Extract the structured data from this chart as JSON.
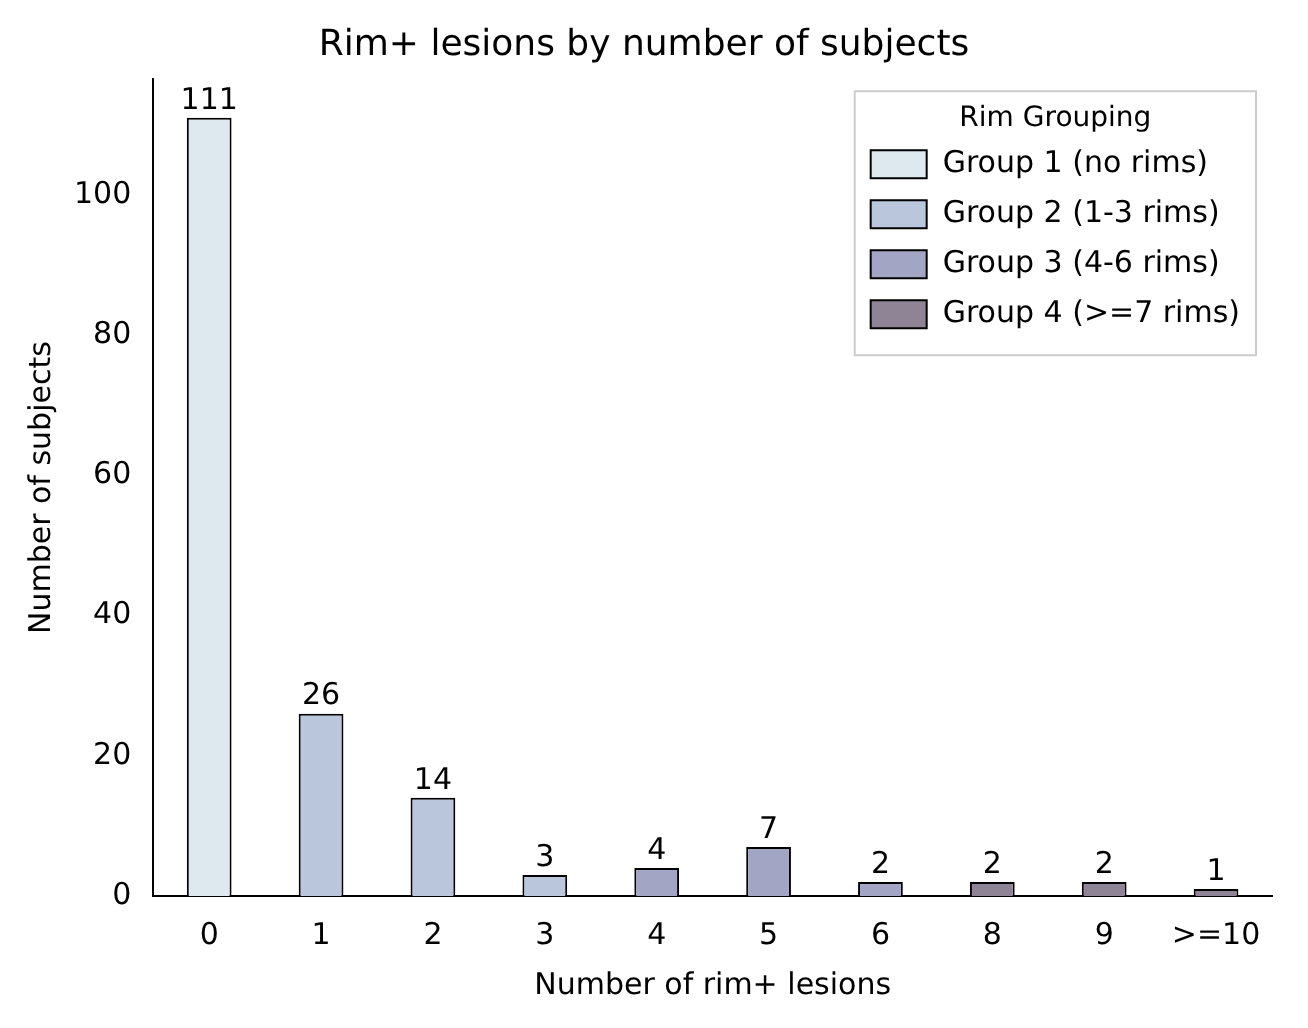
{
  "chart_data": {
    "type": "bar",
    "title": "Rim+ lesions by number of subjects",
    "xlabel": "Number of rim+ lesions",
    "ylabel": "Number of subjects",
    "legend_title": "Rim Grouping",
    "categories": [
      "0",
      "1",
      "2",
      "3",
      "4",
      "5",
      "6",
      "8",
      "9",
      ">=10"
    ],
    "stacked": true,
    "series": [
      {
        "name": "Group 1 (no rims)",
        "color": "#dde9ef",
        "values": [
          111,
          null,
          null,
          null,
          null,
          null,
          null,
          null,
          null,
          null
        ]
      },
      {
        "name": "Group 2 (1-3 rims)",
        "color": "#b9c6dc",
        "values": [
          null,
          26,
          14,
          3,
          null,
          null,
          null,
          null,
          null,
          null
        ]
      },
      {
        "name": "Group 3 (4-6 rims)",
        "color": "#a3a5c5",
        "values": [
          null,
          null,
          null,
          null,
          4,
          7,
          2,
          null,
          null,
          null
        ]
      },
      {
        "name": "Group 4 (>=7 rims)",
        "color": "#8e8496",
        "values": [
          null,
          null,
          null,
          null,
          null,
          null,
          null,
          2,
          2,
          1
        ]
      }
    ],
    "ylim": [
      0,
      116.5
    ],
    "yticks": [
      0,
      20,
      40,
      60,
      80,
      100
    ],
    "grid": false,
    "legend": "top right",
    "data_labels": true
  }
}
